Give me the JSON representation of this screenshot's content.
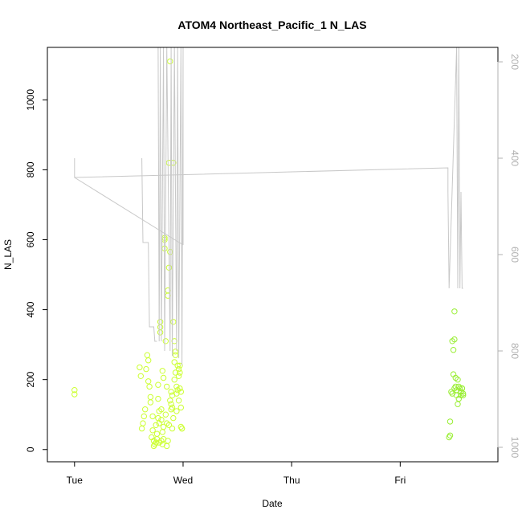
{
  "chart_data": {
    "type": "scatter",
    "title": "ATOM4 Northeast_Pacific_1 N_LAS",
    "xlabel": "Date",
    "ylabel": "N_LAS",
    "x_ticks": [
      "Tue",
      "Wed",
      "Thu",
      "Fri"
    ],
    "x_range_days": [
      -0.25,
      3.9
    ],
    "ylim": [
      -35,
      1150
    ],
    "y_ticks": [
      0,
      200,
      400,
      600,
      800,
      1000
    ],
    "right_axis": {
      "label": "",
      "reversed": true,
      "ylim": [
        1030,
        170
      ],
      "ticks": [
        200,
        400,
        600,
        800,
        1000
      ],
      "color": "#b0b0b0"
    },
    "colors": {
      "points_main": "#ccff33",
      "points_late": "#99ee33",
      "line": "#c8c8c8",
      "frame": "#000000",
      "right_axis": "#b0b0b0"
    },
    "series": [
      {
        "kind": "points",
        "axis": "left",
        "color": "#ccff33",
        "x": [
          0.0,
          0.0,
          0.6,
          0.61,
          0.62,
          0.63,
          0.64,
          0.65,
          0.66,
          0.67,
          0.68,
          0.68,
          0.69,
          0.7,
          0.7,
          0.71,
          0.72,
          0.72,
          0.73,
          0.73,
          0.74,
          0.75,
          0.75,
          0.76,
          0.76,
          0.77,
          0.77,
          0.77,
          0.78,
          0.78,
          0.78,
          0.79,
          0.79,
          0.79,
          0.8,
          0.8,
          0.8,
          0.81,
          0.81,
          0.81,
          0.82,
          0.82,
          0.82,
          0.83,
          0.83,
          0.83,
          0.84,
          0.84,
          0.85,
          0.85,
          0.85,
          0.86,
          0.86,
          0.86,
          0.87,
          0.87,
          0.87,
          0.88,
          0.88,
          0.88,
          0.89,
          0.89,
          0.89,
          0.9,
          0.9,
          0.9,
          0.91,
          0.91,
          0.91,
          0.92,
          0.92,
          0.92,
          0.93,
          0.93,
          0.93,
          0.94,
          0.94,
          0.94,
          0.95,
          0.95,
          0.96,
          0.96,
          0.96,
          0.97,
          0.97,
          0.97,
          0.98,
          0.98,
          0.98,
          0.99,
          0.99
        ],
        "y": [
          170,
          158,
          235,
          210,
          60,
          75,
          95,
          115,
          230,
          270,
          255,
          195,
          180,
          150,
          135,
          35,
          95,
          55,
          25,
          10,
          15,
          70,
          20,
          45,
          30,
          185,
          145,
          90,
          110,
          75,
          20,
          350,
          335,
          365,
          115,
          85,
          25,
          225,
          50,
          15,
          205,
          65,
          30,
          600,
          605,
          575,
          310,
          100,
          180,
          75,
          10,
          440,
          455,
          25,
          820,
          520,
          70,
          1110,
          565,
          140,
          130,
          115,
          165,
          155,
          120,
          60,
          820,
          365,
          90,
          310,
          250,
          200,
          270,
          280,
          220,
          180,
          160,
          110,
          240,
          170,
          230,
          210,
          140,
          240,
          220,
          175,
          165,
          120,
          65,
          60,
          60
        ]
      },
      {
        "kind": "points",
        "axis": "left",
        "color": "#99ee33",
        "x": [
          3.45,
          3.46,
          3.46,
          3.47,
          3.48,
          3.48,
          3.49,
          3.49,
          3.5,
          3.5,
          3.5,
          3.51,
          3.51,
          3.52,
          3.52,
          3.53,
          3.53,
          3.54,
          3.54,
          3.55,
          3.56,
          3.56,
          3.57,
          3.57,
          3.58,
          3.58
        ],
        "y": [
          35,
          40,
          80,
          165,
          160,
          310,
          215,
          285,
          315,
          395,
          175,
          205,
          180,
          170,
          155,
          130,
          200,
          145,
          180,
          175,
          165,
          155,
          175,
          175,
          160,
          155
        ]
      },
      {
        "kind": "line",
        "axis": "right",
        "color": "#c8c8c8",
        "segments": [
          {
            "x": [
              0.0,
              0.0,
              3.44,
              3.44
            ],
            "y": [
              400,
              440,
              420,
              470
            ]
          },
          {
            "x": [
              0.0,
              1.0
            ],
            "y": [
              440,
              580
            ]
          },
          {
            "x": [
              0.62,
              0.63,
              0.635,
              0.66,
              0.68,
              0.69,
              0.73,
              0.74,
              0.76
            ],
            "y": [
              400,
              575,
              575,
              575,
              575,
              750,
              750,
              780,
              780
            ]
          },
          {
            "x": [
              0.77,
              0.78,
              0.79,
              0.8,
              0.82,
              0.83,
              0.85,
              0.88,
              0.89,
              0.9,
              0.92,
              0.94,
              0.95,
              0.96,
              0.98,
              0.99,
              1.0,
              1.0
            ],
            "y": [
              170,
              780,
              170,
              780,
              170,
              800,
              170,
              800,
              170,
              810,
              170,
              800,
              170,
              815,
              170,
              830,
              170,
              580
            ]
          },
          {
            "x": [
              3.44,
              3.45,
              3.52,
              3.53,
              3.54,
              3.55,
              3.56,
              3.57,
              3.58
            ],
            "y": [
              470,
              670,
              170,
              670,
              170,
              670,
              470,
              670,
              670
            ]
          }
        ]
      }
    ]
  }
}
